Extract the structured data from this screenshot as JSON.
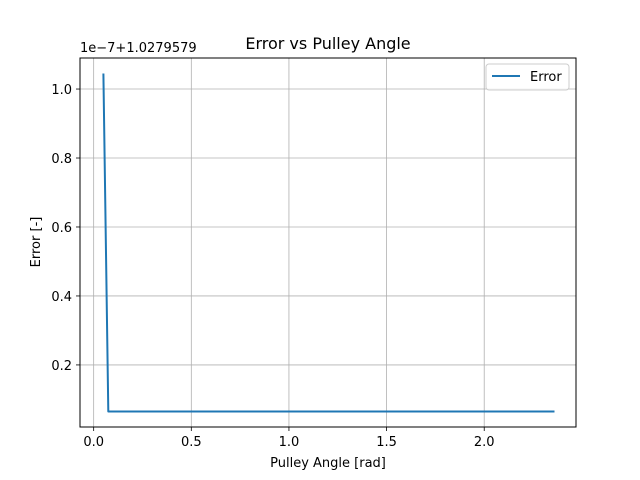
{
  "chart_data": {
    "type": "line",
    "title": "Error vs Pulley Angle",
    "xlabel": "Pulley Angle [rad]",
    "ylabel": "Error [-]",
    "y_offset_text": "1e−7+1.0279579",
    "xlim": [
      -0.07,
      2.47
    ],
    "ylim": [
      0.02,
      1.09
    ],
    "x_ticks": [
      0.0,
      0.5,
      1.0,
      1.5,
      2.0
    ],
    "x_tick_labels": [
      "0.0",
      "0.5",
      "1.0",
      "1.5",
      "2.0"
    ],
    "y_ticks": [
      0.2,
      0.4,
      0.6,
      0.8,
      1.0
    ],
    "y_tick_labels": [
      "0.2",
      "0.4",
      "0.6",
      "0.8",
      "1.0"
    ],
    "grid": true,
    "legend_position": "top-right",
    "series": [
      {
        "name": "Error",
        "color": "#1f77b4",
        "x": [
          0.05,
          0.075,
          0.1,
          0.5,
          1.0,
          1.5,
          2.0,
          2.36
        ],
        "y": [
          1.045,
          0.065,
          0.065,
          0.065,
          0.065,
          0.065,
          0.065,
          0.065
        ]
      }
    ]
  }
}
